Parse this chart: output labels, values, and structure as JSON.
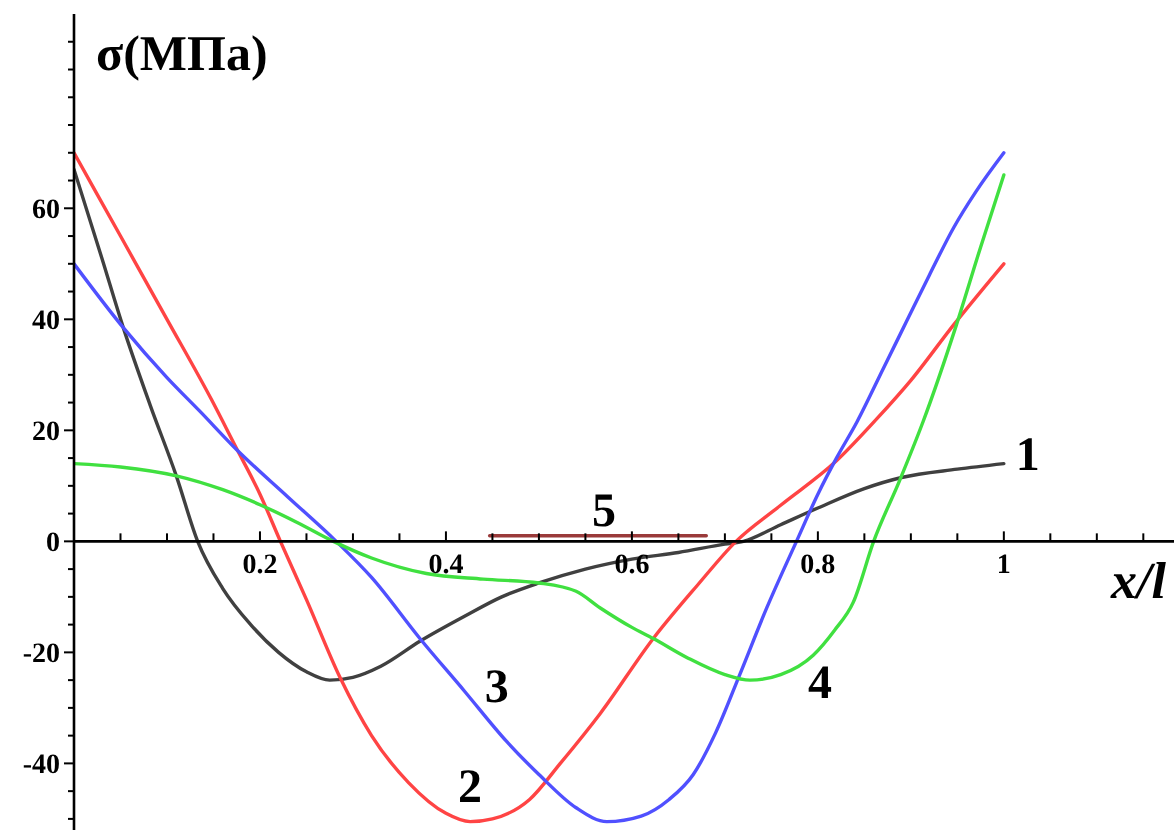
{
  "chart_data": {
    "type": "line",
    "ylabel": "σ(МПа)",
    "xlabel": "x/l",
    "xlim": [
      0,
      1.183
    ],
    "ylim": [
      -52,
      95
    ],
    "xticks": [
      {
        "value": 0.05,
        "label": null
      },
      {
        "value": 0.1,
        "label": null
      },
      {
        "value": 0.15,
        "label": null
      },
      0.2,
      {
        "value": 0.25,
        "label": null
      },
      {
        "value": 0.3,
        "label": null
      },
      {
        "value": 0.35,
        "label": null
      },
      0.4,
      {
        "value": 0.45,
        "label": null
      },
      {
        "value": 0.5,
        "label": null
      },
      {
        "value": 0.55,
        "label": null
      },
      0.6,
      {
        "value": 0.65,
        "label": null
      },
      {
        "value": 0.7,
        "label": null
      },
      {
        "value": 0.75,
        "label": null
      },
      0.8,
      {
        "value": 0.85,
        "label": null
      },
      {
        "value": 0.9,
        "label": null
      },
      {
        "value": 0.95,
        "label": null
      },
      1,
      {
        "value": 1.05,
        "label": null
      },
      {
        "value": 1.1,
        "label": null
      },
      {
        "value": 1.15,
        "label": null
      }
    ],
    "yticks": [
      {
        "value": -50,
        "label": null
      },
      {
        "value": -45,
        "label": null
      },
      -40,
      {
        "value": -35,
        "label": null
      },
      {
        "value": -30,
        "label": null
      },
      {
        "value": -25,
        "label": null
      },
      -20,
      {
        "value": -15,
        "label": null
      },
      {
        "value": -10,
        "label": null
      },
      {
        "value": -5,
        "label": null
      },
      0,
      {
        "value": 5,
        "label": null
      },
      {
        "value": 10,
        "label": null
      },
      {
        "value": 15,
        "label": null
      },
      20,
      {
        "value": 25,
        "label": null
      },
      {
        "value": 30,
        "label": null
      },
      {
        "value": 35,
        "label": null
      },
      40,
      {
        "value": 45,
        "label": null
      },
      {
        "value": 50,
        "label": null
      },
      {
        "value": 55,
        "label": null
      },
      60,
      {
        "value": 65,
        "label": null
      },
      {
        "value": 70,
        "label": null
      },
      {
        "value": 75,
        "label": null
      },
      {
        "value": 80,
        "label": null
      },
      {
        "value": 85,
        "label": null
      },
      {
        "value": 90,
        "label": null
      }
    ],
    "series": [
      {
        "name": "1",
        "color": "#404040",
        "x": [
          0,
          0.03,
          0.053,
          0.082,
          0.11,
          0.133,
          0.16,
          0.19,
          0.22,
          0.25,
          0.275,
          0.3,
          0.33,
          0.372,
          0.42,
          0.46,
          0.5,
          0.55,
          0.6,
          0.65,
          0.7,
          0.72,
          0.76,
          0.8,
          0.85,
          0.89,
          0.95,
          1
        ],
        "values": [
          67,
          51,
          38.5,
          24.5,
          11.8,
          0,
          -8.5,
          -15,
          -20,
          -23.5,
          -25,
          -24.5,
          -22.5,
          -18,
          -13.5,
          -10,
          -7.5,
          -5,
          -3.2,
          -2,
          -0.5,
          0,
          3,
          6,
          9.5,
          11.5,
          13,
          14
        ]
      },
      {
        "name": "2",
        "color": "#ff4444",
        "x": [
          0,
          0.05,
          0.1,
          0.148,
          0.174,
          0.2,
          0.222,
          0.25,
          0.286,
          0.32,
          0.36,
          0.4,
          0.426,
          0.45,
          0.49,
          0.523,
          0.566,
          0.623,
          0.67,
          0.712,
          0.76,
          0.82,
          0.863,
          0.9,
          0.946,
          1
        ],
        "values": [
          70,
          55,
          40,
          25.5,
          17,
          8.5,
          0,
          -10.5,
          -24.5,
          -35,
          -43.5,
          -49,
          -50.5,
          -50,
          -46.5,
          -40,
          -31,
          -17.5,
          -8,
          0,
          6.5,
          14.5,
          22,
          29,
          39,
          50
        ]
      },
      {
        "name": "3",
        "color": "#5050ff",
        "x": [
          0,
          0.053,
          0.1,
          0.135,
          0.175,
          0.23,
          0.282,
          0.32,
          0.372,
          0.42,
          0.465,
          0.5,
          0.54,
          0.573,
          0.61,
          0.64,
          0.666,
          0.69,
          0.716,
          0.745,
          0.777,
          0.8,
          0.82,
          0.842,
          0.87,
          0.895,
          0.92,
          0.946,
          0.97,
          1
        ],
        "values": [
          50,
          38.5,
          29.5,
          23.5,
          16.5,
          8,
          0,
          -6.5,
          -17.5,
          -27,
          -36,
          -42,
          -48,
          -50.5,
          -49.5,
          -46.5,
          -42,
          -34.5,
          -24,
          -12,
          0,
          8.5,
          15,
          21.5,
          31,
          39.5,
          48,
          56.5,
          63,
          70
        ]
      },
      {
        "name": "4",
        "color": "#40e040",
        "x": [
          0,
          0.05,
          0.11,
          0.16,
          0.2,
          0.24,
          0.279,
          0.32,
          0.379,
          0.44,
          0.5,
          0.54,
          0.566,
          0.6,
          0.623,
          0.66,
          0.7,
          0.727,
          0.76,
          0.795,
          0.818,
          0.838,
          0.86,
          0.888,
          0.913,
          0.949,
          0.975,
          1
        ],
        "values": [
          14,
          13.4,
          11.8,
          9.3,
          6.6,
          3.4,
          0,
          -3,
          -5.8,
          -6.8,
          -7.5,
          -9,
          -12,
          -15.5,
          -17.5,
          -21,
          -24,
          -25,
          -24,
          -20.5,
          -16,
          -11,
          0,
          11,
          21.5,
          39,
          53,
          66
        ]
      },
      {
        "name": "5",
        "color": "#9a3a3a",
        "x": [
          0.447,
          0.68
        ],
        "values": [
          1,
          1
        ]
      }
    ]
  }
}
